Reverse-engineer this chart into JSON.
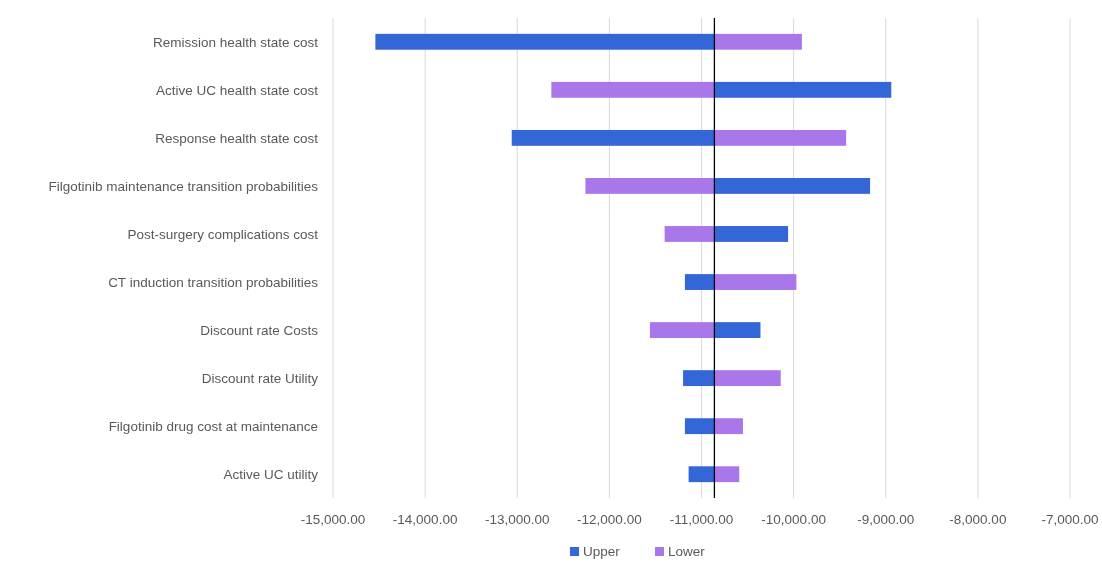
{
  "chart_data": {
    "type": "bar",
    "orientation": "horizontal",
    "categories": [
      "Remission health state cost",
      "Active UC health state cost",
      "Response health state cost",
      "Filgotinib maintenance transition probabilities",
      "Post-surgery complications cost",
      "CT induction transition probabilities",
      "Discount rate Costs",
      "Discount rate Utility",
      "Filgotinib drug cost at maintenance ",
      "Active UC utility"
    ],
    "series": [
      {
        "name": "Upper",
        "color": "#3366d6",
        "base": [
          -10860,
          -10860,
          -10860,
          -10860,
          -10860,
          -10860,
          -10860,
          -10860,
          -10860,
          -10860
        ],
        "values": [
          -3680,
          1920,
          -2200,
          1690,
          800,
          -320,
          500,
          -340,
          -320,
          -280
        ]
      },
      {
        "name": "Lower",
        "color": "#a977ea",
        "base": [
          -10860,
          -10860,
          -10860,
          -10860,
          -10860,
          -10860,
          -10860,
          -10860,
          -10860,
          -10860
        ],
        "values": [
          950,
          -1770,
          1430,
          -1400,
          -540,
          890,
          -700,
          720,
          310,
          270
        ]
      }
    ],
    "xlim": [
      -15000,
      -7000
    ],
    "xticks": [
      {
        "value": -15000,
        "label": "-15,000.00"
      },
      {
        "value": -14000,
        "label": "-14,000.00"
      },
      {
        "value": -13000,
        "label": "-13,000.00"
      },
      {
        "value": -12000,
        "label": "-12,000.00"
      },
      {
        "value": -11000,
        "label": "-11,000.00"
      },
      {
        "value": -10000,
        "label": "-10,000.00"
      },
      {
        "value": -9000,
        "label": "-9,000.00"
      },
      {
        "value": -8000,
        "label": "-8,000.00"
      },
      {
        "value": -7000,
        "label": "-7,000.00"
      }
    ],
    "ref_lines": [
      {
        "axis": "x",
        "value": -10860,
        "color": "#000000"
      }
    ],
    "grid": "x",
    "legend": "bottom"
  }
}
